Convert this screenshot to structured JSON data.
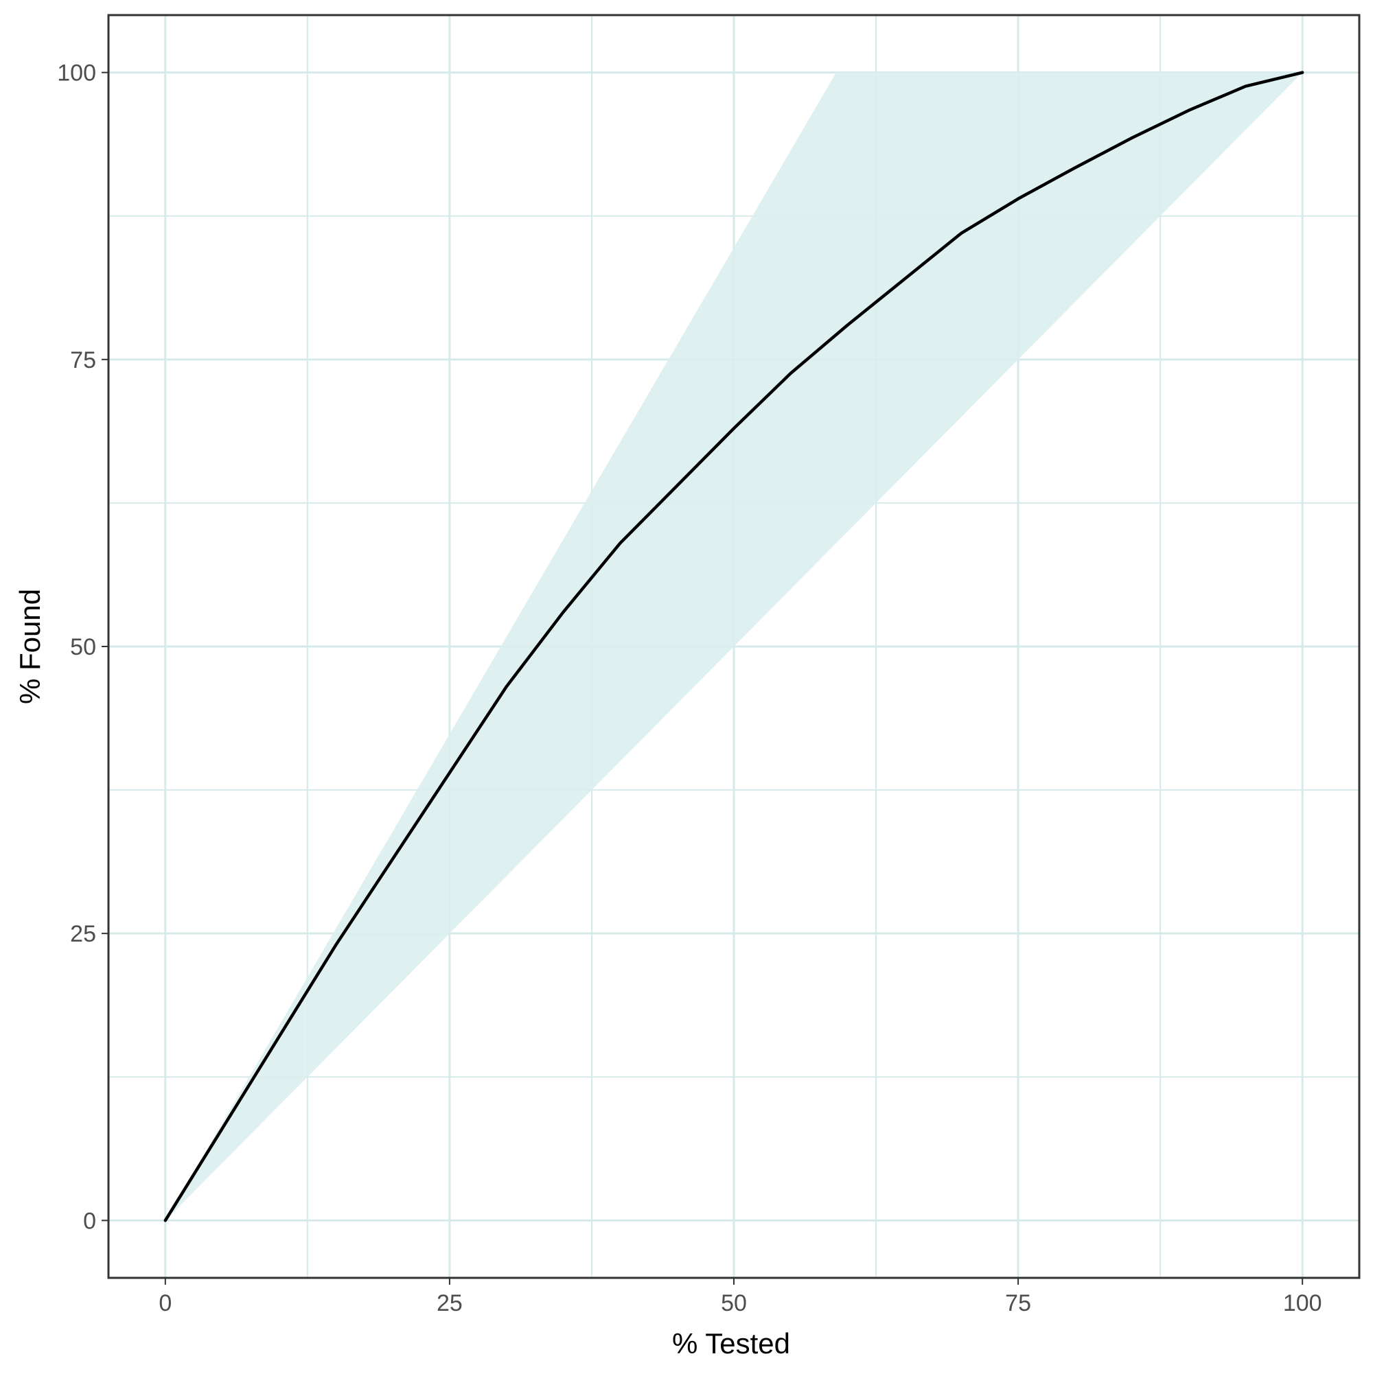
{
  "chart_data": {
    "type": "area",
    "title": "",
    "xlabel": "% Tested",
    "ylabel": "% Found",
    "xlim": [
      -5,
      105
    ],
    "ylim": [
      -5,
      105
    ],
    "x_ticks": [
      0,
      25,
      50,
      75,
      100
    ],
    "y_ticks": [
      0,
      25,
      50,
      75,
      100
    ],
    "x_tick_labels": [
      "0",
      "25",
      "50",
      "75",
      "100"
    ],
    "y_tick_labels": [
      "0",
      "25",
      "50",
      "75",
      "100"
    ],
    "grid": true,
    "legend": "none",
    "colors": {
      "band": "#dceeee",
      "grid": "#d7eaea",
      "line": "#000000",
      "frame": "#333333"
    },
    "band": {
      "x": [
        0,
        59,
        100,
        100,
        0
      ],
      "y": [
        0,
        100,
        100,
        100,
        0
      ],
      "lower": {
        "x": [
          0,
          100
        ],
        "y": [
          0,
          100
        ]
      },
      "upper": {
        "x": [
          0,
          59,
          100
        ],
        "y": [
          0,
          100,
          100
        ]
      }
    },
    "series": [
      {
        "x": [
          0,
          5,
          10,
          15,
          20,
          25,
          30,
          35,
          40,
          45,
          50,
          55,
          60,
          65,
          70,
          75,
          80,
          85,
          90,
          95,
          100
        ],
        "values": [
          0,
          8,
          16,
          24,
          31.5,
          39,
          46.5,
          53,
          59,
          64,
          69,
          73.8,
          78,
          82,
          86,
          89,
          91.7,
          94.3,
          96.7,
          98.8,
          100
        ]
      }
    ]
  }
}
